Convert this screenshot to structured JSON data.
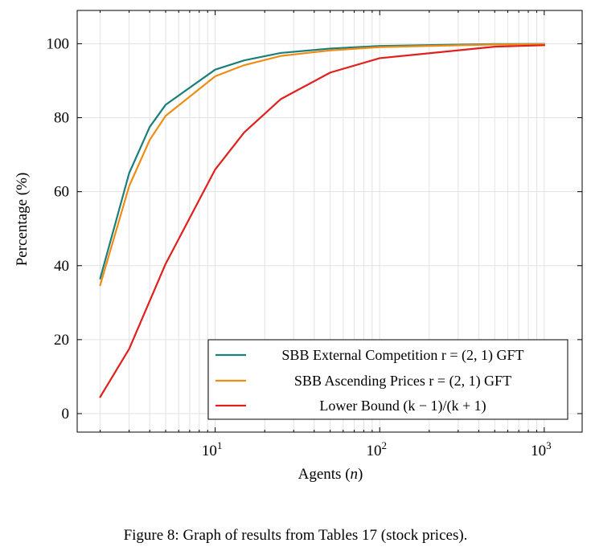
{
  "caption": "Figure 8: Graph of results from Tables 17 (stock prices).",
  "chart_data": {
    "type": "line",
    "xscale": "log",
    "xlabel": "Agents (n)",
    "ylabel": "Percentage (%)",
    "xlim": [
      1.45,
      1700
    ],
    "ylim": [
      -5,
      109
    ],
    "x_ticks": [
      10,
      100,
      1000
    ],
    "x_tick_labels": [
      {
        "base": "10",
        "exp": "1"
      },
      {
        "base": "10",
        "exp": "2"
      },
      {
        "base": "10",
        "exp": "3"
      }
    ],
    "y_ticks": [
      0,
      20,
      40,
      60,
      80,
      100
    ],
    "y_tick_labels": [
      "0",
      "20",
      "40",
      "60",
      "80",
      "100"
    ],
    "grid": true,
    "legend_position": "bottom-right",
    "series": [
      {
        "name": "SBB External Competition r = (2, 1) GFT",
        "color": "#1a7f7a",
        "x": [
          2,
          3,
          4,
          5,
          10,
          15,
          25,
          50,
          100,
          500,
          1000
        ],
        "y": [
          36.5,
          65,
          77.5,
          83.5,
          93,
          95.5,
          97.5,
          98.7,
          99.4,
          99.9,
          99.95
        ]
      },
      {
        "name": "SBB Ascending Prices r = (2, 1) GFT",
        "color": "#f08c14",
        "x": [
          2,
          3,
          4,
          5,
          10,
          15,
          25,
          50,
          100,
          500,
          1000
        ],
        "y": [
          34.7,
          61.5,
          74,
          80.5,
          91.2,
          94.2,
          96.7,
          98.2,
          99.1,
          99.8,
          99.85
        ]
      },
      {
        "name": "Lower Bound (k − 1)/(k + 1)",
        "color": "#e0201c",
        "x": [
          2,
          3,
          5,
          10,
          15,
          25,
          50,
          100,
          500,
          1000
        ],
        "y": [
          4.5,
          17.5,
          40.5,
          66,
          76,
          85,
          92.2,
          96.1,
          99.2,
          99.6
        ]
      }
    ]
  }
}
